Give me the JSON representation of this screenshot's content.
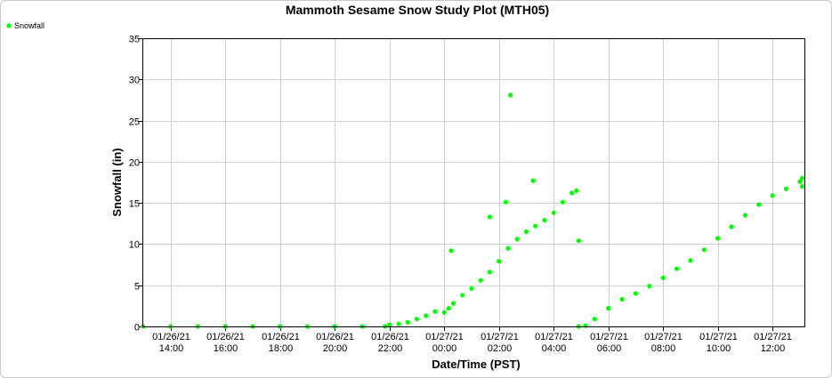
{
  "chart_data": {
    "type": "scatter",
    "title": "Mammoth Sesame Snow Study Plot (MTH05)",
    "xlabel": "Date/Time (PST)",
    "ylabel": "Snowfall (in)",
    "ylim": [
      0,
      35
    ],
    "yticks": [
      0,
      5,
      10,
      15,
      20,
      25,
      30,
      35
    ],
    "xlim": [
      "01/26/21 13:00",
      "01/27/21 13:10"
    ],
    "xticks": [
      {
        "date": "01/26/21",
        "time": "14:00"
      },
      {
        "date": "01/26/21",
        "time": "16:00"
      },
      {
        "date": "01/26/21",
        "time": "18:00"
      },
      {
        "date": "01/26/21",
        "time": "20:00"
      },
      {
        "date": "01/26/21",
        "time": "22:00"
      },
      {
        "date": "01/27/21",
        "time": "00:00"
      },
      {
        "date": "01/27/21",
        "time": "02:00"
      },
      {
        "date": "01/27/21",
        "time": "04:00"
      },
      {
        "date": "01/27/21",
        "time": "06:00"
      },
      {
        "date": "01/27/21",
        "time": "08:00"
      },
      {
        "date": "01/27/21",
        "time": "10:00"
      },
      {
        "date": "01/27/21",
        "time": "12:00"
      }
    ],
    "grid": true,
    "legend_position": "top-left",
    "series": [
      {
        "name": "Snowfall",
        "color": "#00ff00",
        "points": [
          [
            "01/26/21 13:00",
            0
          ],
          [
            "01/26/21 14:00",
            0
          ],
          [
            "01/26/21 15:00",
            0
          ],
          [
            "01/26/21 16:00",
            0
          ],
          [
            "01/26/21 17:00",
            0
          ],
          [
            "01/26/21 18:00",
            0
          ],
          [
            "01/26/21 19:00",
            0
          ],
          [
            "01/26/21 20:00",
            0
          ],
          [
            "01/26/21 21:00",
            0
          ],
          [
            "01/26/21 21:50",
            0
          ],
          [
            "01/26/21 22:00",
            0.2
          ],
          [
            "01/26/21 22:20",
            0.3
          ],
          [
            "01/26/21 22:40",
            0.5
          ],
          [
            "01/26/21 23:00",
            0.9
          ],
          [
            "01/26/21 23:20",
            1.3
          ],
          [
            "01/26/21 23:40",
            1.8
          ],
          [
            "01/27/21 00:00",
            1.7
          ],
          [
            "01/27/21 00:10",
            2.2
          ],
          [
            "01/27/21 00:20",
            2.8
          ],
          [
            "01/27/21 00:40",
            3.8
          ],
          [
            "01/27/21 01:00",
            4.6
          ],
          [
            "01/27/21 01:20",
            5.6
          ],
          [
            "01/27/21 01:40",
            6.6
          ],
          [
            "01/27/21 02:00",
            7.9
          ],
          [
            "01/27/21 02:20",
            9.5
          ],
          [
            "01/27/21 02:40",
            10.6
          ],
          [
            "01/27/21 03:00",
            11.5
          ],
          [
            "01/27/21 03:20",
            12.2
          ],
          [
            "01/27/21 03:40",
            12.9
          ],
          [
            "01/27/21 04:00",
            13.8
          ],
          [
            "01/27/21 04:20",
            15.1
          ],
          [
            "01/27/21 04:40",
            16.2
          ],
          [
            "01/27/21 04:50",
            16.5
          ],
          [
            "01/27/21 00:15",
            9.2
          ],
          [
            "01/27/21 01:40",
            13.3
          ],
          [
            "01/27/21 02:15",
            15.1
          ],
          [
            "01/27/21 02:25",
            28.1
          ],
          [
            "01/27/21 03:15",
            17.7
          ],
          [
            "01/27/21 04:55",
            10.4
          ],
          [
            "01/27/21 04:55",
            0
          ],
          [
            "01/27/21 05:10",
            0.1
          ],
          [
            "01/27/21 05:30",
            0.9
          ],
          [
            "01/27/21 06:00",
            2.2
          ],
          [
            "01/27/21 06:30",
            3.3
          ],
          [
            "01/27/21 07:00",
            4.0
          ],
          [
            "01/27/21 07:30",
            4.9
          ],
          [
            "01/27/21 08:00",
            5.9
          ],
          [
            "01/27/21 08:30",
            7.0
          ],
          [
            "01/27/21 09:00",
            8.0
          ],
          [
            "01/27/21 09:30",
            9.3
          ],
          [
            "01/27/21 10:00",
            10.7
          ],
          [
            "01/27/21 10:30",
            12.1
          ],
          [
            "01/27/21 11:00",
            13.5
          ],
          [
            "01/27/21 11:30",
            14.8
          ],
          [
            "01/27/21 12:00",
            15.9
          ],
          [
            "01/27/21 12:30",
            16.7
          ],
          [
            "01/27/21 13:00",
            17.6
          ],
          [
            "01/27/21 13:05",
            18.0
          ],
          [
            "01/27/21 13:05",
            17.0
          ]
        ]
      }
    ]
  }
}
